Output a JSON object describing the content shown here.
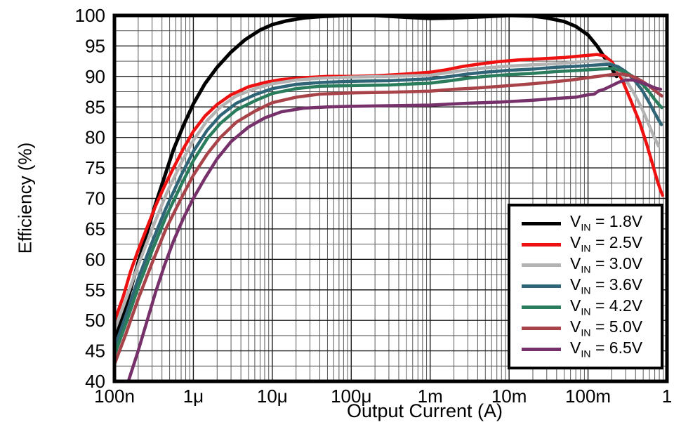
{
  "chart_data": {
    "type": "line",
    "title": "",
    "xlabel": "Output Current (A)",
    "ylabel": "Efficiency (%)",
    "x_scale": "log",
    "xlim": [
      1e-07,
      1
    ],
    "ylim": [
      40,
      100
    ],
    "y_major_step": 5,
    "y_minor_step": 2.5,
    "grid": "on",
    "legend_position": "bottom-right",
    "legend": {
      "var_main": "V",
      "var_sub": "IN",
      "separator": " = "
    },
    "x_ticks": [
      {
        "value": 1e-07,
        "label": "100n"
      },
      {
        "value": 1e-06,
        "label": "1μ"
      },
      {
        "value": 1e-05,
        "label": "10μ"
      },
      {
        "value": 0.0001,
        "label": "100μ"
      },
      {
        "value": 0.001,
        "label": "1m"
      },
      {
        "value": 0.01,
        "label": "10m"
      },
      {
        "value": 0.1,
        "label": "100m"
      },
      {
        "value": 1,
        "label": "1"
      }
    ],
    "y_ticks": [
      {
        "value": 100,
        "label": "100"
      },
      {
        "value": 95,
        "label": "95"
      },
      {
        "value": 90,
        "label": "90"
      },
      {
        "value": 85,
        "label": "85"
      },
      {
        "value": 80,
        "label": "80"
      },
      {
        "value": 75,
        "label": "75"
      },
      {
        "value": 70,
        "label": "70"
      },
      {
        "value": 65,
        "label": "65"
      },
      {
        "value": 60,
        "label": "60"
      },
      {
        "value": 55,
        "label": "55"
      },
      {
        "value": 50,
        "label": "50"
      },
      {
        "value": 45,
        "label": "45"
      },
      {
        "value": 40,
        "label": "40"
      }
    ],
    "series": [
      {
        "name": "VIN = 1.8V",
        "vin": "1.8V",
        "color": "#000000",
        "width": 5,
        "points": [
          [
            1e-07,
            47
          ],
          [
            1.3e-07,
            51
          ],
          [
            1.6e-07,
            55
          ],
          [
            2e-07,
            59.5
          ],
          [
            2.6e-07,
            64.5
          ],
          [
            3.3e-07,
            69
          ],
          [
            4.3e-07,
            73.5
          ],
          [
            5.6e-07,
            78
          ],
          [
            7.5e-07,
            82
          ],
          [
            1e-06,
            85.5
          ],
          [
            1.4e-06,
            88.8
          ],
          [
            2e-06,
            91.5
          ],
          [
            3e-06,
            94
          ],
          [
            4.5e-06,
            96
          ],
          [
            7e-06,
            97.6
          ],
          [
            1e-05,
            98.5
          ],
          [
            1.5e-05,
            99.1
          ],
          [
            2.5e-05,
            99.6
          ],
          [
            4e-05,
            99.8
          ],
          [
            8e-05,
            100
          ],
          [
            0.0002,
            100
          ],
          [
            0.0005,
            99.7
          ],
          [
            0.001,
            99.5
          ],
          [
            0.002,
            99.6
          ],
          [
            0.005,
            99.8
          ],
          [
            0.01,
            100
          ],
          [
            0.02,
            99.9
          ],
          [
            0.03,
            99.6
          ],
          [
            0.05,
            99
          ],
          [
            0.07,
            98.2
          ],
          [
            0.1,
            96.8
          ],
          [
            0.13,
            95
          ],
          [
            0.16,
            93.2
          ],
          [
            0.2,
            91.3
          ],
          [
            0.23,
            90
          ]
        ]
      },
      {
        "name": "VIN = 2.5V",
        "vin": "2.5V",
        "color": "#ee1111",
        "width": 4.5,
        "points": [
          [
            1e-07,
            49.8
          ],
          [
            1.3e-07,
            54
          ],
          [
            1.6e-07,
            58
          ],
          [
            2e-07,
            61.5
          ],
          [
            2.6e-07,
            65.3
          ],
          [
            3.3e-07,
            68.7
          ],
          [
            4.3e-07,
            72
          ],
          [
            5.6e-07,
            75
          ],
          [
            7.5e-07,
            78.2
          ],
          [
            1e-06,
            81
          ],
          [
            1.4e-06,
            83.5
          ],
          [
            2e-06,
            85.4
          ],
          [
            3e-06,
            87
          ],
          [
            5e-06,
            88.3
          ],
          [
            8e-06,
            89
          ],
          [
            1.3e-05,
            89.5
          ],
          [
            2.5e-05,
            89.8
          ],
          [
            5e-05,
            90
          ],
          [
            0.0001,
            90
          ],
          [
            0.0002,
            90.1
          ],
          [
            0.0005,
            90.4
          ],
          [
            0.001,
            90.7
          ],
          [
            0.0016,
            91.1
          ],
          [
            0.0025,
            91.6
          ],
          [
            0.004,
            92
          ],
          [
            0.007,
            92.4
          ],
          [
            0.013,
            92.7
          ],
          [
            0.025,
            92.9
          ],
          [
            0.05,
            93.1
          ],
          [
            0.09,
            93.4
          ],
          [
            0.13,
            93.6
          ],
          [
            0.16,
            93.4
          ],
          [
            0.2,
            92.4
          ],
          [
            0.24,
            90.8
          ],
          [
            0.28,
            89
          ],
          [
            0.35,
            86
          ],
          [
            0.45,
            82.5
          ],
          [
            0.55,
            79
          ],
          [
            0.65,
            75.8
          ],
          [
            0.75,
            73
          ],
          [
            0.83,
            71.3
          ],
          [
            0.88,
            70.5
          ]
        ]
      },
      {
        "name": "VIN = 3.0V",
        "vin": "3.0V",
        "color": "#b3b3b3",
        "width": 4.5,
        "points": [
          [
            1e-07,
            48.3
          ],
          [
            1.4e-07,
            53.5
          ],
          [
            2e-07,
            59
          ],
          [
            3e-07,
            65
          ],
          [
            4.5e-07,
            70.6
          ],
          [
            7e-07,
            75.8
          ],
          [
            1e-06,
            79.5
          ],
          [
            1.5e-06,
            82.8
          ],
          [
            2.2e-06,
            85
          ],
          [
            3.5e-06,
            86.8
          ],
          [
            6e-06,
            88
          ],
          [
            1e-05,
            88.8
          ],
          [
            2e-05,
            89.4
          ],
          [
            4e-05,
            89.7
          ],
          [
            0.0001,
            89.9
          ],
          [
            0.0003,
            90
          ],
          [
            0.001,
            90.2
          ],
          [
            0.0018,
            90.7
          ],
          [
            0.003,
            91.1
          ],
          [
            0.005,
            91.4
          ],
          [
            0.01,
            91.7
          ],
          [
            0.02,
            91.9
          ],
          [
            0.04,
            92.1
          ],
          [
            0.08,
            92.4
          ],
          [
            0.13,
            92.6
          ],
          [
            0.17,
            92.5
          ],
          [
            0.21,
            91.8
          ],
          [
            0.25,
            90.8
          ],
          [
            0.3,
            89.5
          ],
          [
            0.38,
            87.3
          ],
          [
            0.48,
            84.8
          ],
          [
            0.58,
            82.3
          ],
          [
            0.68,
            80.2
          ],
          [
            0.78,
            78.6
          ]
        ]
      },
      {
        "name": "VIN = 3.6V",
        "vin": "3.6V",
        "color": "#2f6577",
        "width": 4.5,
        "points": [
          [
            1e-07,
            45.5
          ],
          [
            1.4e-07,
            50.8
          ],
          [
            2e-07,
            56.8
          ],
          [
            3e-07,
            62.8
          ],
          [
            4.5e-07,
            68.4
          ],
          [
            7e-07,
            73.8
          ],
          [
            1e-06,
            77.7
          ],
          [
            1.5e-06,
            81.2
          ],
          [
            2.2e-06,
            83.6
          ],
          [
            3.5e-06,
            85.6
          ],
          [
            6e-06,
            87
          ],
          [
            1e-05,
            88
          ],
          [
            2e-05,
            88.7
          ],
          [
            4e-05,
            89
          ],
          [
            0.0001,
            89.2
          ],
          [
            0.0003,
            89.3
          ],
          [
            0.001,
            89.6
          ],
          [
            0.0018,
            90
          ],
          [
            0.003,
            90.4
          ],
          [
            0.005,
            90.7
          ],
          [
            0.01,
            91
          ],
          [
            0.02,
            91.2
          ],
          [
            0.04,
            91.5
          ],
          [
            0.08,
            91.7
          ],
          [
            0.14,
            91.9
          ],
          [
            0.19,
            92
          ],
          [
            0.24,
            91.6
          ],
          [
            0.3,
            90.8
          ],
          [
            0.38,
            89.5
          ],
          [
            0.48,
            87.8
          ],
          [
            0.58,
            86
          ],
          [
            0.68,
            84.3
          ],
          [
            0.78,
            82.9
          ],
          [
            0.85,
            82.1
          ]
        ]
      },
      {
        "name": "VIN = 4.2V",
        "vin": "4.2V",
        "color": "#2a7d5c",
        "width": 4.5,
        "points": [
          [
            1e-07,
            44.3
          ],
          [
            1.4e-07,
            49.5
          ],
          [
            2e-07,
            55.4
          ],
          [
            3e-07,
            61.4
          ],
          [
            4.5e-07,
            67
          ],
          [
            7e-07,
            72.2
          ],
          [
            1e-06,
            76.2
          ],
          [
            1.5e-06,
            79.8
          ],
          [
            2.2e-06,
            82.3
          ],
          [
            3.5e-06,
            84.5
          ],
          [
            6e-06,
            86
          ],
          [
            1e-05,
            87.2
          ],
          [
            2e-05,
            88
          ],
          [
            4e-05,
            88.4
          ],
          [
            0.0001,
            88.5
          ],
          [
            0.0003,
            88.6
          ],
          [
            0.001,
            88.9
          ],
          [
            0.0018,
            89.3
          ],
          [
            0.003,
            89.7
          ],
          [
            0.005,
            90
          ],
          [
            0.01,
            90.3
          ],
          [
            0.02,
            90.5
          ],
          [
            0.04,
            90.8
          ],
          [
            0.08,
            91
          ],
          [
            0.14,
            91.2
          ],
          [
            0.2,
            91.3
          ],
          [
            0.26,
            91
          ],
          [
            0.32,
            90.5
          ],
          [
            0.4,
            89.7
          ],
          [
            0.5,
            88.6
          ],
          [
            0.6,
            87.4
          ],
          [
            0.7,
            86.2
          ],
          [
            0.8,
            85.3
          ],
          [
            0.86,
            84.9
          ]
        ]
      },
      {
        "name": "VIN = 5.0V",
        "vin": "5.0V",
        "color": "#a8434a",
        "width": 4.5,
        "points": [
          [
            1e-07,
            42.8
          ],
          [
            1.4e-07,
            47.8
          ],
          [
            2e-07,
            53.5
          ],
          [
            3e-07,
            59.4
          ],
          [
            4.5e-07,
            65
          ],
          [
            7e-07,
            70
          ],
          [
            1e-06,
            73.8
          ],
          [
            1.5e-06,
            77.3
          ],
          [
            2.2e-06,
            80
          ],
          [
            3.5e-06,
            82.5
          ],
          [
            6e-06,
            84.3
          ],
          [
            1e-05,
            85.7
          ],
          [
            2e-05,
            86.6
          ],
          [
            4e-05,
            87.1
          ],
          [
            0.0001,
            87.3
          ],
          [
            0.0003,
            87.4
          ],
          [
            0.001,
            87.6
          ],
          [
            0.002,
            87.9
          ],
          [
            0.004,
            88.1
          ],
          [
            0.008,
            88.4
          ],
          [
            0.016,
            88.7
          ],
          [
            0.03,
            89
          ],
          [
            0.06,
            89.4
          ],
          [
            0.1,
            89.8
          ],
          [
            0.15,
            90.1
          ],
          [
            0.2,
            90.3
          ],
          [
            0.27,
            90.4
          ],
          [
            0.33,
            90.2
          ],
          [
            0.4,
            89.8
          ],
          [
            0.5,
            89.1
          ],
          [
            0.6,
            88.4
          ],
          [
            0.7,
            87.7
          ],
          [
            0.8,
            87.1
          ],
          [
            0.86,
            86.8
          ]
        ]
      },
      {
        "name": "VIN = 6.5V",
        "vin": "6.5V",
        "color": "#76316b",
        "width": 4.5,
        "points": [
          [
            1.5e-07,
            40
          ],
          [
            2e-07,
            45
          ],
          [
            2.6e-07,
            50
          ],
          [
            3.3e-07,
            54.5
          ],
          [
            4.3e-07,
            59
          ],
          [
            5.6e-07,
            63
          ],
          [
            7.5e-07,
            66.8
          ],
          [
            1e-06,
            70
          ],
          [
            1.4e-06,
            73.3
          ],
          [
            2e-06,
            76.5
          ],
          [
            3e-06,
            79.3
          ],
          [
            5e-06,
            81.7
          ],
          [
            8e-06,
            83.2
          ],
          [
            1.3e-05,
            84.2
          ],
          [
            2.5e-05,
            84.8
          ],
          [
            5e-05,
            85
          ],
          [
            0.0001,
            85.1
          ],
          [
            0.0003,
            85.2
          ],
          [
            0.001,
            85.3
          ],
          [
            0.003,
            85.6
          ],
          [
            0.008,
            85.8
          ],
          [
            0.02,
            86.1
          ],
          [
            0.04,
            86.4
          ],
          [
            0.07,
            86.6
          ],
          [
            0.1,
            87
          ],
          [
            0.12,
            87.1
          ],
          [
            0.135,
            87.6
          ],
          [
            0.16,
            87.9
          ],
          [
            0.2,
            88.5
          ],
          [
            0.25,
            89.1
          ],
          [
            0.3,
            89.4
          ],
          [
            0.37,
            89.4
          ],
          [
            0.45,
            89.1
          ],
          [
            0.55,
            88.7
          ],
          [
            0.65,
            88.3
          ],
          [
            0.75,
            88
          ],
          [
            0.83,
            87.9
          ]
        ]
      }
    ],
    "colors": {
      "frame": "#000000",
      "grid_major": "#1a1a1a",
      "grid_minor": "#5a5a5a",
      "background": "#ffffff"
    }
  }
}
